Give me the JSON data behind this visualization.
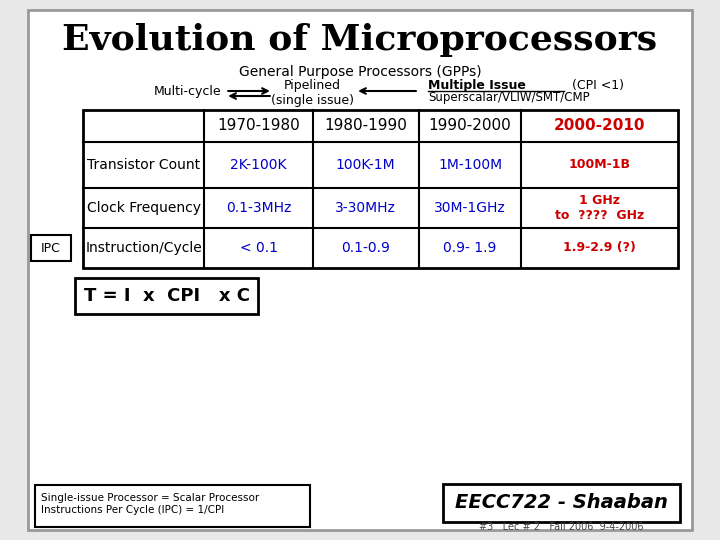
{
  "title": "Evolution of Microprocessors",
  "subtitle": "General Purpose Processors (GPPs)",
  "bg_color": "#e8e8e8",
  "slide_bg": "#ffffff",
  "title_color": "#000000",
  "subtitle_color": "#000000",
  "col_headers": [
    "1970-1980",
    "1980-1990",
    "1990-2000",
    "2000-2010"
  ],
  "col_header_colors": [
    "#000000",
    "#000000",
    "#000000",
    "#cc0000"
  ],
  "row_labels": [
    "Transistor Count",
    "Clock Frequency",
    "Instruction/Cycle"
  ],
  "row_label_color": "#000000",
  "table_data": [
    [
      "2K-100K",
      "100K-1M",
      "1M-100M",
      "100M-1B"
    ],
    [
      "0.1-3MHz",
      "3-30MHz",
      "30M-1GHz",
      "1 GHz\nto  ????  GHz"
    ],
    [
      "< 0.1",
      "0.1-0.9",
      "0.9- 1.9",
      "1.9-2.9 (?)"
    ]
  ],
  "table_data_colors": [
    [
      "#0000cc",
      "#0000cc",
      "#0000cc",
      "#cc0000"
    ],
    [
      "#0000cc",
      "#0000cc",
      "#0000cc",
      "#cc0000"
    ],
    [
      "#0000cc",
      "#0000cc",
      "#0000cc",
      "#cc0000"
    ]
  ],
  "ipc_label": "IPC",
  "formula": "T = I  x  CPI   x C",
  "footnote_left": "Single-issue Processor = Scalar Processor\nInstructions Per Cycle (IPC) = 1/CPI",
  "footnote_right": "EECC722 - Shaaban",
  "footnote_bottom": "#3   Lec # 2   Fall 2006  9-4-2006",
  "multicycle_text": "Multi-cycle",
  "pipelined_text": "Pipelined\n(single issue)",
  "multiple_issue_text": "Multiple Issue",
  "multiple_issue_cpi": "  (CPI <1)",
  "superscalar_text": "Superscalar/VLIW/SMT/CMP"
}
